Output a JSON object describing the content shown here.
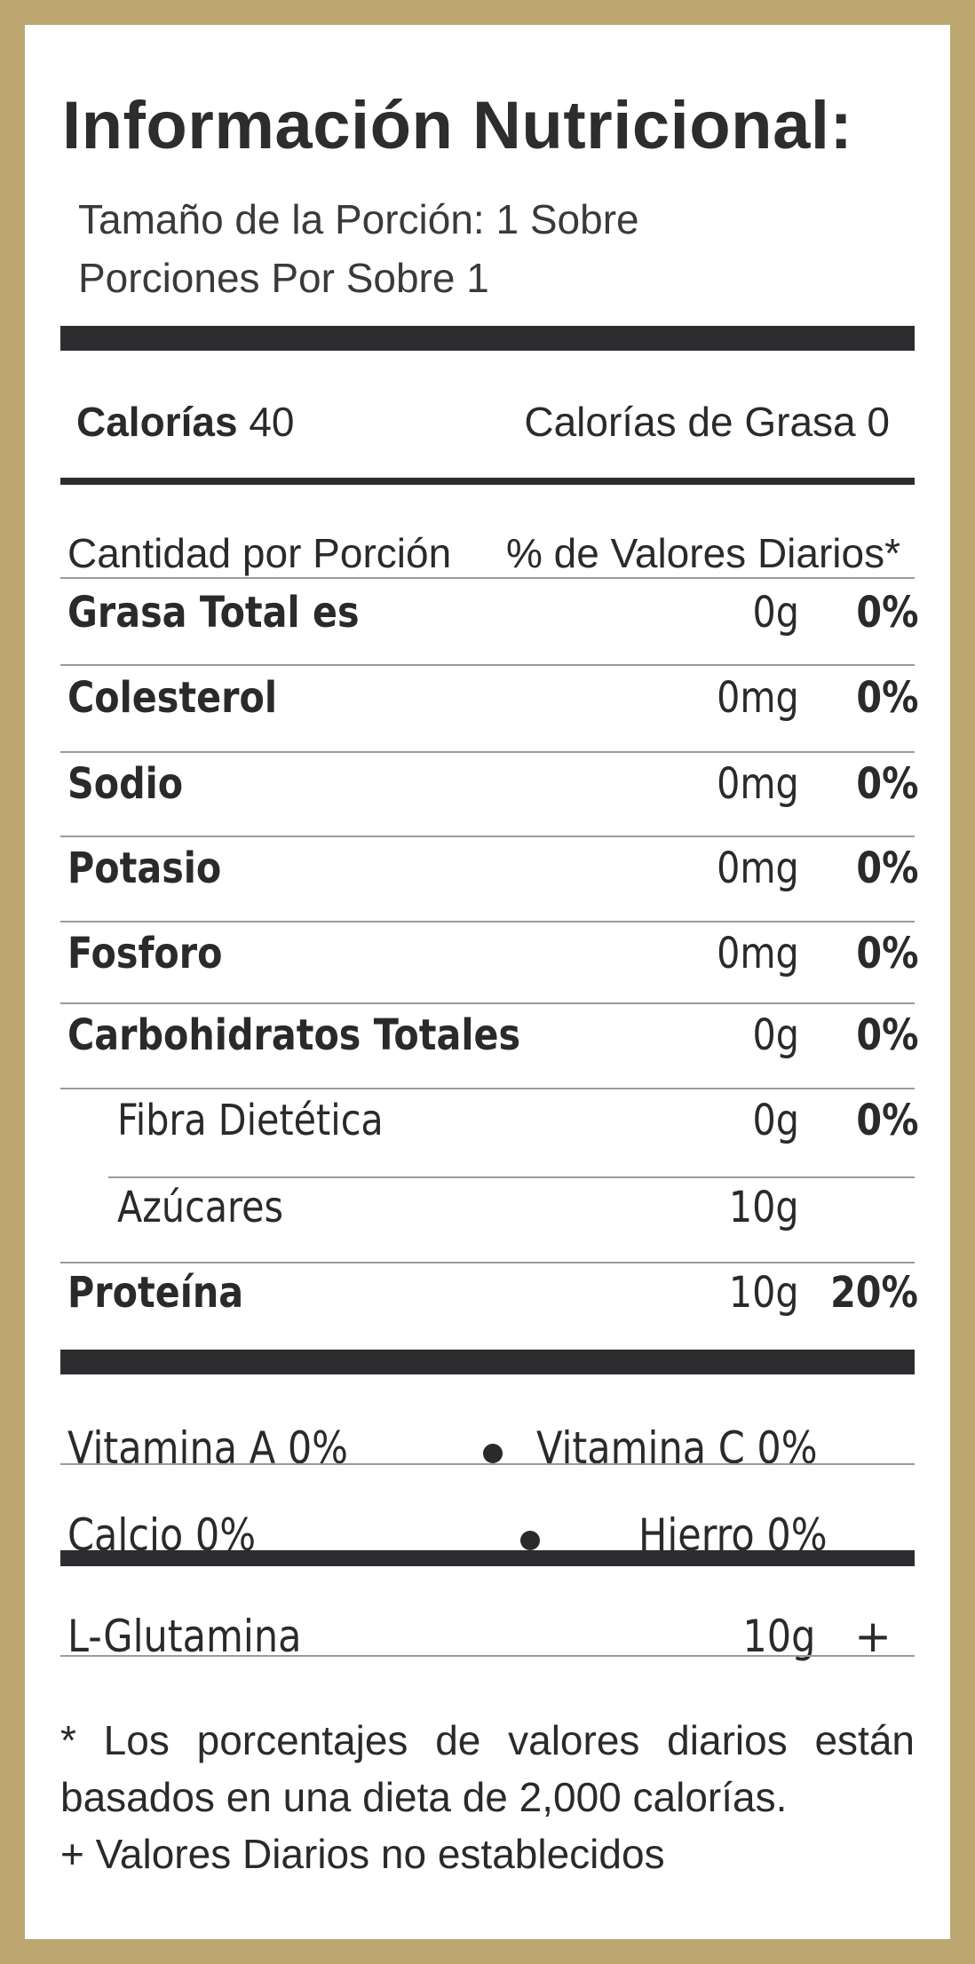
{
  "title": "Información Nutricional:",
  "serving": {
    "size": "Tamaño de la Porción: 1 Sobre",
    "per_container": "Porciones Por Sobre 1"
  },
  "calories": {
    "label": "Calorías",
    "value": "40",
    "fat_label": "Calorías de Grasa 0"
  },
  "header": {
    "amount": "Cantidad por Porción",
    "daily": "% de Valores Diarios*"
  },
  "nutrients": [
    {
      "name": "Grasa Total es",
      "amount": "0g",
      "pct": "0%"
    },
    {
      "name": "Colesterol",
      "amount": "0mg",
      "pct": "0%"
    },
    {
      "name": "Sodio",
      "amount": "0mg",
      "pct": "0%"
    },
    {
      "name": "Potasio",
      "amount": "0mg",
      "pct": "0%"
    },
    {
      "name": "Fosforo",
      "amount": "0mg",
      "pct": "0%"
    },
    {
      "name": "Carbohidratos Totales",
      "amount": "0g",
      "pct": "0%"
    },
    {
      "name": "Fibra Dietética",
      "amount": "0g",
      "pct": "0%"
    },
    {
      "name": "Azúcares",
      "amount": "10g",
      "pct": ""
    },
    {
      "name": "Proteína",
      "amount": "10g",
      "pct": "20%"
    }
  ],
  "vitamins": {
    "row1_left": "Vitamina A 0%",
    "row1_right": "Vitamina C 0%",
    "row2_left": "Calcio 0%",
    "row2_right": "Hierro 0%"
  },
  "extra": {
    "name": "L-Glutamina",
    "amount": "10g",
    "mark": "+"
  },
  "footnote": {
    "line1": "* Los porcentajes de valores diarios están",
    "line2": "basados en una dieta de 2,000 calorías.",
    "line3": "+ Valores Diarios no establecidos"
  },
  "colors": {
    "frame": "#bca770",
    "ink": "#2d2c2e",
    "panel": "#ffffff"
  }
}
